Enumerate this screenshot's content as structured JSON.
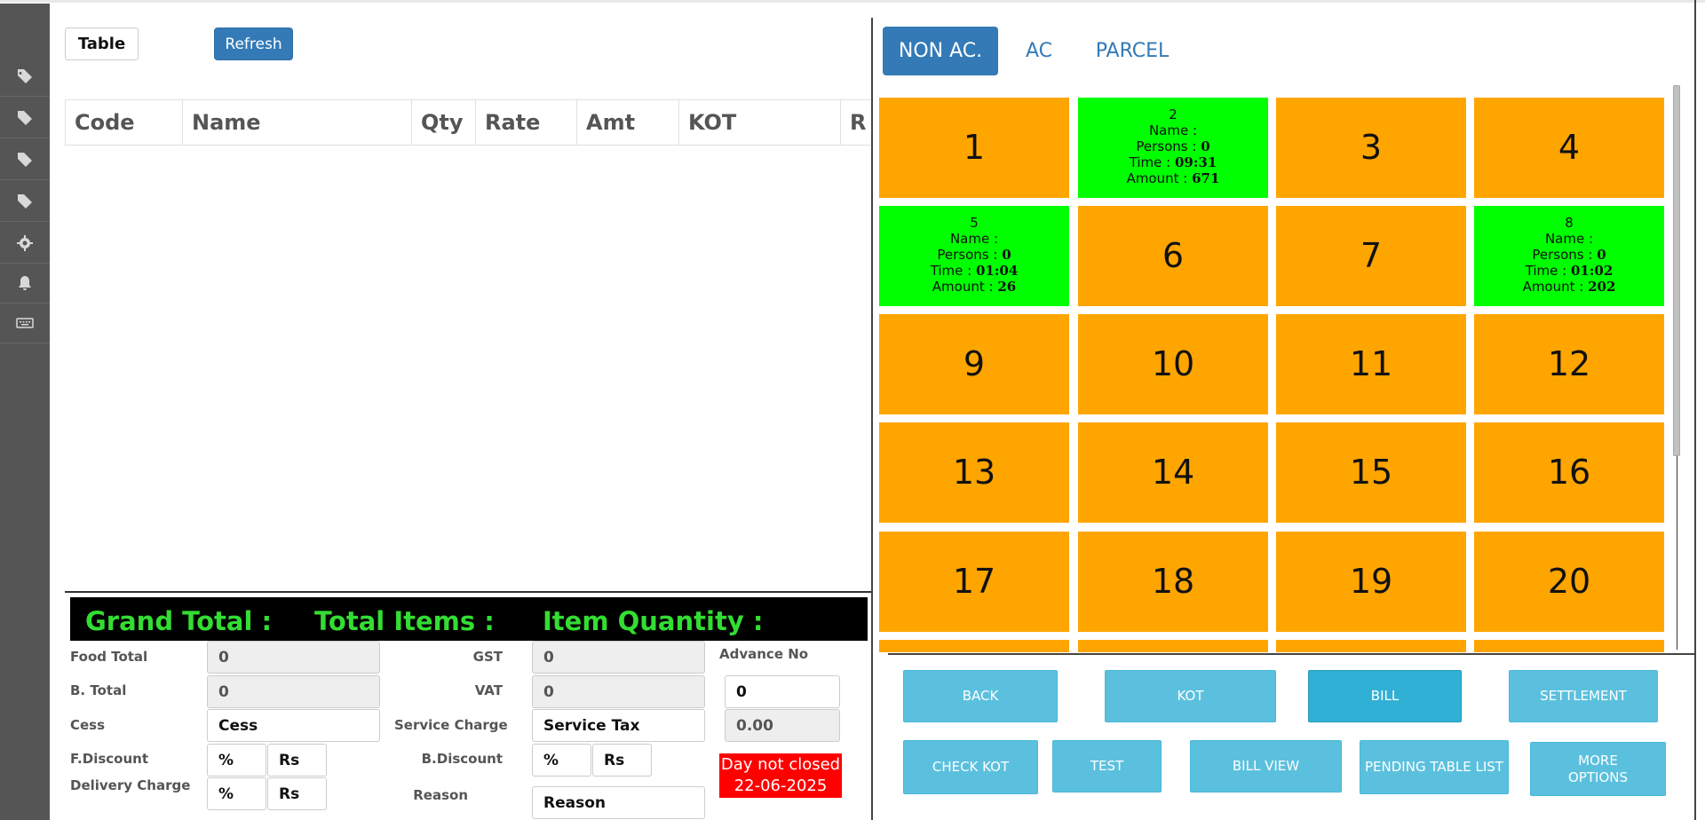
{
  "left": {
    "table_button": "Table",
    "refresh_button": "Refresh",
    "columns": [
      "Code",
      "Name",
      "Qty",
      "Rate",
      "Amt",
      "KOT",
      "R"
    ],
    "totals": {
      "grand_total": "Grand Total :",
      "total_items": "Total Items :",
      "item_quantity": "Item Quantity :"
    },
    "fields": {
      "food_total_label": "Food Total",
      "food_total_value": "0",
      "b_total_label": "B. Total",
      "b_total_value": "0",
      "cess_label": "Cess",
      "cess_placeholder": "Cess",
      "fdiscount_label": "F.Discount",
      "fdiscount_pct": "%",
      "fdiscount_rs": "Rs",
      "delivery_label": "Delivery Charge",
      "delivery_pct": "%",
      "delivery_rs": "Rs",
      "gst_label": "GST",
      "gst_value": "0",
      "vat_label": "VAT",
      "vat_value": "0",
      "service_charge_label": "Service Charge",
      "service_charge_placeholder": "Service Tax",
      "bdiscount_label": "B.Discount",
      "bdiscount_pct": "%",
      "bdiscount_rs": "Rs",
      "reason_label": "Reason",
      "reason_placeholder": "Reason",
      "advance_label": "Advance No",
      "advance_value": "0",
      "advance_amount": "0.00"
    },
    "day_status": {
      "line1": "Day not closed",
      "line2": "22-06-2025"
    }
  },
  "right": {
    "tabs": [
      "NON AC.",
      "AC",
      "PARCEL"
    ],
    "active_tab": "NON AC.",
    "colors": {
      "free": "#ffa500",
      "occupied": "#00ff00"
    },
    "labels": {
      "name": "Name :",
      "persons": "Persons :",
      "time": "Time :",
      "amount": "Amount :"
    },
    "tables": [
      {
        "no": "1",
        "status": "free"
      },
      {
        "no": "2",
        "status": "occupied",
        "name": "",
        "persons": "0",
        "time": "09:31",
        "amount": "671"
      },
      {
        "no": "3",
        "status": "free"
      },
      {
        "no": "4",
        "status": "free"
      },
      {
        "no": "5",
        "status": "occupied",
        "name": "",
        "persons": "0",
        "time": "01:04",
        "amount": "26"
      },
      {
        "no": "6",
        "status": "free"
      },
      {
        "no": "7",
        "status": "free"
      },
      {
        "no": "8",
        "status": "occupied",
        "name": "",
        "persons": "0",
        "time": "01:02",
        "amount": "202"
      },
      {
        "no": "9",
        "status": "free"
      },
      {
        "no": "10",
        "status": "free"
      },
      {
        "no": "11",
        "status": "free"
      },
      {
        "no": "12",
        "status": "free"
      },
      {
        "no": "13",
        "status": "free"
      },
      {
        "no": "14",
        "status": "free"
      },
      {
        "no": "15",
        "status": "free"
      },
      {
        "no": "16",
        "status": "free"
      },
      {
        "no": "17",
        "status": "free"
      },
      {
        "no": "18",
        "status": "free"
      },
      {
        "no": "19",
        "status": "free"
      },
      {
        "no": "20",
        "status": "free"
      },
      {
        "no": "",
        "status": "free"
      },
      {
        "no": "",
        "status": "free"
      },
      {
        "no": "",
        "status": "free"
      },
      {
        "no": "",
        "status": "free"
      }
    ],
    "actions": {
      "back": "BACK",
      "kot": "KOT",
      "bill": "BILL",
      "settlement": "SETTLEMENT",
      "check_kot": "CHECK KOT",
      "test": "TEST",
      "bill_view": "BILL VIEW",
      "pending_table_list": "PENDING TABLE LIST",
      "more_options": "MORE OPTIONS"
    }
  },
  "sidebar": {
    "icons": [
      "tag-icon",
      "tag-icon",
      "tag-icon",
      "tag-icon",
      "gear-icon",
      "bell-icon",
      "keyboard-icon"
    ]
  }
}
